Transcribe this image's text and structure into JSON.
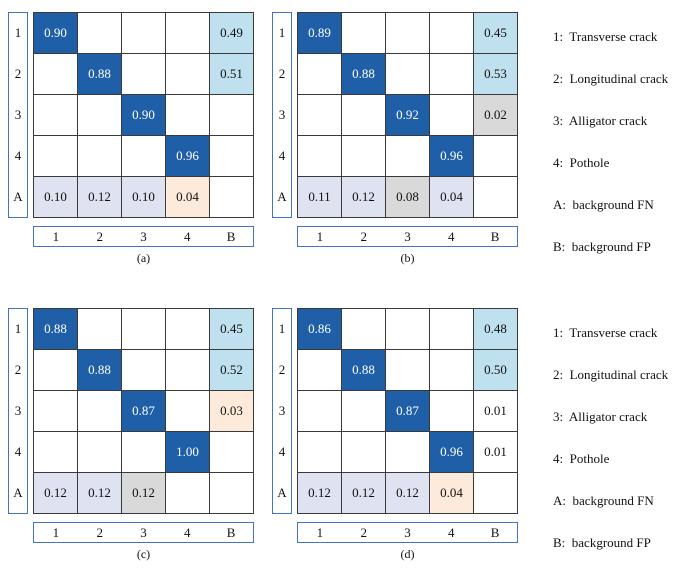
{
  "colors": {
    "diagonal": "#1f5fa8",
    "light_blue": "#bfe0ee",
    "lavender": "#dfe2f1",
    "gray": "#d9d9d9",
    "cream": "#fdeada",
    "white": "#ffffff",
    "box_border": "#4472c4"
  },
  "legend": [
    "1:  Transverse crack",
    "2:  Longitudinal crack",
    "3:  Alligator crack",
    "4:  Pothole",
    "A:  background FN",
    "B:  background FP"
  ],
  "chart_data": [
    {
      "type": "heatmap",
      "title": "(a)",
      "rows": [
        "1",
        "2",
        "3",
        "4",
        "A"
      ],
      "cols": [
        "1",
        "2",
        "3",
        "4",
        "B"
      ],
      "cells": [
        [
          {
            "v": "0.90",
            "bg": "diagonal"
          },
          null,
          null,
          null,
          {
            "v": "0.49",
            "bg": "light_blue"
          }
        ],
        [
          null,
          {
            "v": "0.88",
            "bg": "diagonal"
          },
          null,
          null,
          {
            "v": "0.51",
            "bg": "light_blue"
          }
        ],
        [
          null,
          null,
          {
            "v": "0.90",
            "bg": "diagonal"
          },
          null,
          null
        ],
        [
          null,
          null,
          null,
          {
            "v": "0.96",
            "bg": "diagonal"
          },
          null
        ],
        [
          {
            "v": "0.10",
            "bg": "lavender"
          },
          {
            "v": "0.12",
            "bg": "lavender"
          },
          {
            "v": "0.10",
            "bg": "lavender"
          },
          {
            "v": "0.04",
            "bg": "cream"
          },
          null
        ]
      ]
    },
    {
      "type": "heatmap",
      "title": "(b)",
      "rows": [
        "1",
        "2",
        "3",
        "4",
        "A"
      ],
      "cols": [
        "1",
        "2",
        "3",
        "4",
        "B"
      ],
      "cells": [
        [
          {
            "v": "0.89",
            "bg": "diagonal"
          },
          null,
          null,
          null,
          {
            "v": "0.45",
            "bg": "light_blue"
          }
        ],
        [
          null,
          {
            "v": "0.88",
            "bg": "diagonal"
          },
          null,
          null,
          {
            "v": "0.53",
            "bg": "light_blue"
          }
        ],
        [
          null,
          null,
          {
            "v": "0.92",
            "bg": "diagonal"
          },
          null,
          {
            "v": "0.02",
            "bg": "gray"
          }
        ],
        [
          null,
          null,
          null,
          {
            "v": "0.96",
            "bg": "diagonal"
          },
          null
        ],
        [
          {
            "v": "0.11",
            "bg": "lavender"
          },
          {
            "v": "0.12",
            "bg": "lavender"
          },
          {
            "v": "0.08",
            "bg": "gray"
          },
          {
            "v": "0.04",
            "bg": "lavender"
          },
          null
        ]
      ]
    },
    {
      "type": "heatmap",
      "title": "(c)",
      "rows": [
        "1",
        "2",
        "3",
        "4",
        "A"
      ],
      "cols": [
        "1",
        "2",
        "3",
        "4",
        "B"
      ],
      "cells": [
        [
          {
            "v": "0.88",
            "bg": "diagonal"
          },
          null,
          null,
          null,
          {
            "v": "0.45",
            "bg": "light_blue"
          }
        ],
        [
          null,
          {
            "v": "0.88",
            "bg": "diagonal"
          },
          null,
          null,
          {
            "v": "0.52",
            "bg": "light_blue"
          }
        ],
        [
          null,
          null,
          {
            "v": "0.87",
            "bg": "diagonal"
          },
          null,
          {
            "v": "0.03",
            "bg": "cream"
          }
        ],
        [
          null,
          null,
          null,
          {
            "v": "1.00",
            "bg": "diagonal"
          },
          null
        ],
        [
          {
            "v": "0.12",
            "bg": "lavender"
          },
          {
            "v": "0.12",
            "bg": "lavender"
          },
          {
            "v": "0.12",
            "bg": "gray"
          },
          null,
          null
        ]
      ]
    },
    {
      "type": "heatmap",
      "title": "(d)",
      "rows": [
        "1",
        "2",
        "3",
        "4",
        "A"
      ],
      "cols": [
        "1",
        "2",
        "3",
        "4",
        "B"
      ],
      "cells": [
        [
          {
            "v": "0.86",
            "bg": "diagonal"
          },
          null,
          null,
          null,
          {
            "v": "0.48",
            "bg": "light_blue"
          }
        ],
        [
          null,
          {
            "v": "0.88",
            "bg": "diagonal"
          },
          null,
          null,
          {
            "v": "0.50",
            "bg": "light_blue"
          }
        ],
        [
          null,
          null,
          {
            "v": "0.87",
            "bg": "diagonal"
          },
          null,
          {
            "v": "0.01",
            "bg": "white"
          }
        ],
        [
          null,
          null,
          null,
          {
            "v": "0.96",
            "bg": "diagonal"
          },
          {
            "v": "0.01",
            "bg": "white"
          }
        ],
        [
          {
            "v": "0.12",
            "bg": "lavender"
          },
          {
            "v": "0.12",
            "bg": "lavender"
          },
          {
            "v": "0.12",
            "bg": "lavender"
          },
          {
            "v": "0.04",
            "bg": "cream"
          },
          null
        ]
      ]
    }
  ]
}
